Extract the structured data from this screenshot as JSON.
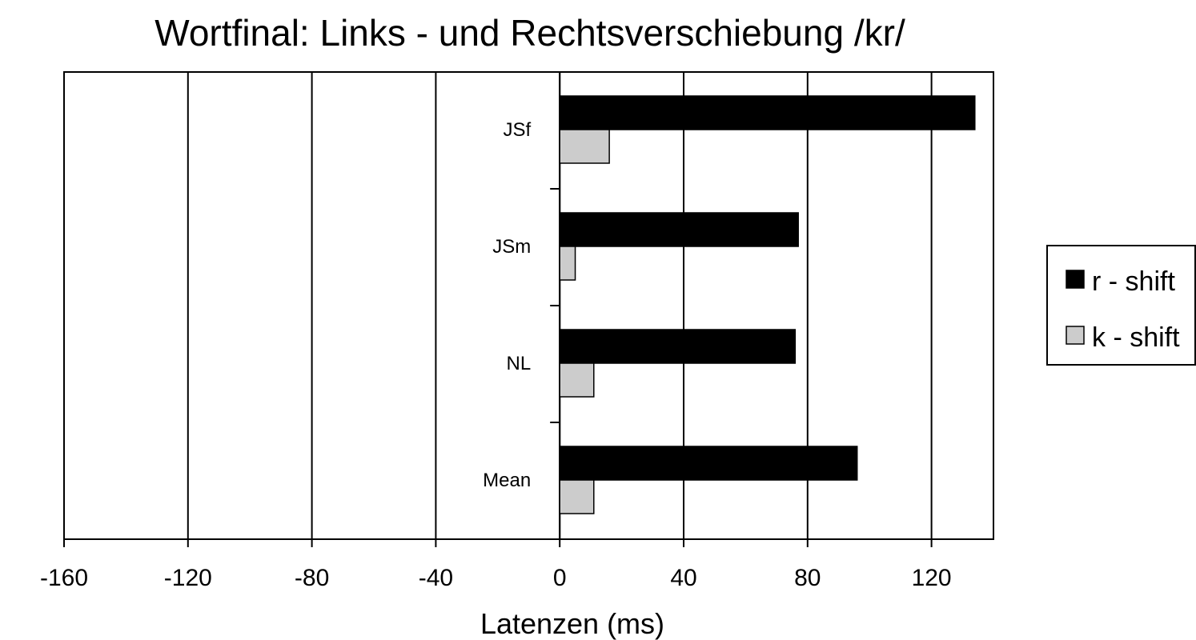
{
  "chart_data": {
    "type": "bar",
    "orientation": "horizontal",
    "title": "Wortfinal: Links - und Rechtsverschiebung /kr/",
    "xlabel": "Latenzen (ms)",
    "ylabel": "",
    "xlim": [
      -160,
      140
    ],
    "xticks": [
      "-160",
      "-120",
      "-80",
      "-40",
      "0",
      "40",
      "80",
      "120"
    ],
    "categories": [
      "JSf",
      "JSm",
      "NL",
      "Mean"
    ],
    "series": [
      {
        "name": "r - shift",
        "color": "#000000",
        "values": [
          134,
          77,
          76,
          96
        ]
      },
      {
        "name": "k - shift",
        "color": "#cccccc",
        "values": [
          16,
          5,
          11,
          11
        ]
      }
    ],
    "grid": "vertical lines at major ticks",
    "legend": "right"
  }
}
